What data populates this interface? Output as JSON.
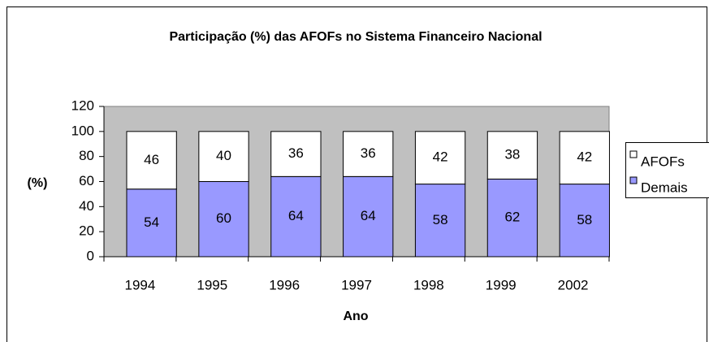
{
  "chart_data": {
    "type": "bar",
    "stacked": true,
    "title": "Participação (%) das AFOFs no Sistema Financeiro Nacional",
    "x_label": "Ano",
    "y_label": "(%)",
    "categories": [
      "1994",
      "1995",
      "1996",
      "1997",
      "1998",
      "1999",
      "2002"
    ],
    "series": [
      {
        "name": "Demais",
        "color": "#9999ff",
        "values": [
          54,
          60,
          64,
          64,
          58,
          62,
          58
        ]
      },
      {
        "name": "AFOFs",
        "color": "#ffffff",
        "values": [
          46,
          40,
          36,
          36,
          42,
          38,
          42
        ]
      }
    ],
    "ylim": [
      0,
      120
    ],
    "yticks": [
      0,
      20,
      40,
      60,
      80,
      100,
      120
    ],
    "plot_background": "#c0c0c0"
  }
}
